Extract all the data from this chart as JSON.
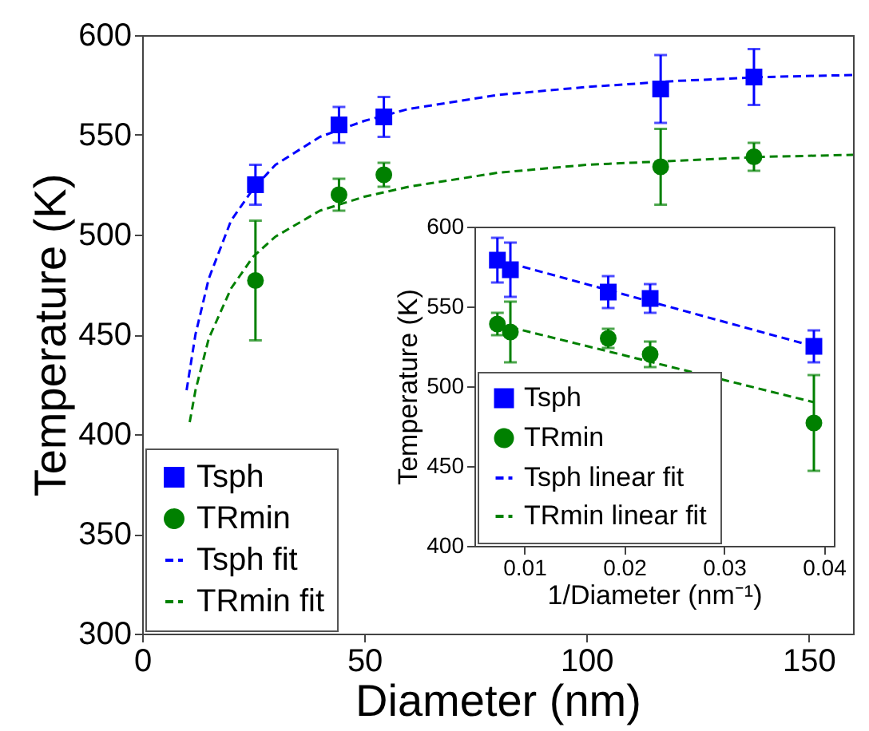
{
  "chart_data": [
    {
      "type": "scatter",
      "xlabel": "Diameter (nm)",
      "ylabel": "Temperature (K)",
      "xlim": [
        0,
        160
      ],
      "xticks": [
        0,
        50,
        100,
        150
      ],
      "ylim": [
        300,
        600
      ],
      "yticks": [
        300,
        350,
        400,
        450,
        500,
        550,
        600
      ],
      "grid": false,
      "legend": "bottom left",
      "series": [
        {
          "name": "Tsph",
          "marker": "square",
          "color": "#0000ff",
          "x": [
            25.5,
            44.3,
            54.4,
            116.7,
            137.7
          ],
          "values": [
            525,
            555,
            559,
            573,
            579
          ],
          "errors": [
            10,
            9,
            10,
            17,
            14
          ]
        },
        {
          "name": "TRmin",
          "marker": "circle",
          "color": "#008000",
          "x": [
            25.5,
            44.3,
            54.4,
            116.7,
            137.7
          ],
          "values": [
            477,
            520,
            530,
            534,
            539
          ],
          "errors": [
            30,
            8,
            6,
            19,
            7
          ]
        },
        {
          "name": "Tsph fit",
          "type": "line",
          "line_style": "dashed",
          "color": "#0000ff",
          "x": [
            10,
            12,
            15,
            20,
            25,
            30,
            40,
            50,
            60,
            80,
            100,
            120,
            140,
            160
          ],
          "values": [
            422,
            450,
            478,
            507,
            523,
            535,
            549,
            557,
            563,
            570,
            574,
            577,
            579,
            580
          ]
        },
        {
          "name": "TRmin fit",
          "type": "line",
          "line_style": "dashed",
          "color": "#008000",
          "x": [
            10.7,
            12,
            15,
            20,
            25,
            30,
            40,
            50,
            60,
            80,
            100,
            120,
            140,
            160
          ],
          "values": [
            406,
            422,
            448,
            473,
            489,
            499,
            512,
            519,
            524,
            531,
            535,
            537,
            539,
            540
          ]
        }
      ]
    },
    {
      "type": "scatter",
      "xlabel": "1/Diameter (nm⁻¹)",
      "ylabel": "Temperature (K)",
      "xlim": [
        0.005,
        0.041
      ],
      "xticks": [
        0.01,
        0.02,
        0.03,
        0.04
      ],
      "ylim": [
        400,
        600
      ],
      "yticks": [
        400,
        450,
        500,
        550,
        600
      ],
      "grid": false,
      "legend": "bottom left",
      "series": [
        {
          "name": "Tsph",
          "marker": "square",
          "color": "#0000ff",
          "x": [
            0.039,
            0.0226,
            0.0184,
            0.0086,
            0.0073
          ],
          "values": [
            525,
            555,
            559,
            573,
            579
          ],
          "errors": [
            10,
            9,
            10,
            17,
            14
          ]
        },
        {
          "name": "TRmin",
          "marker": "circle",
          "color": "#008000",
          "x": [
            0.039,
            0.0226,
            0.0184,
            0.0086,
            0.0073
          ],
          "values": [
            477,
            520,
            530,
            534,
            539
          ],
          "errors": [
            30,
            8,
            6,
            19,
            7
          ]
        },
        {
          "name": "Tsph linear fit",
          "type": "line",
          "line_style": "dashed",
          "color": "#0000ff",
          "x": [
            0.0086,
            0.039
          ],
          "values": [
            577,
            525
          ]
        },
        {
          "name": "TRmin linear fit",
          "type": "line",
          "line_style": "dashed",
          "color": "#008000",
          "x": [
            0.0086,
            0.039
          ],
          "values": [
            537,
            490
          ]
        }
      ]
    }
  ]
}
